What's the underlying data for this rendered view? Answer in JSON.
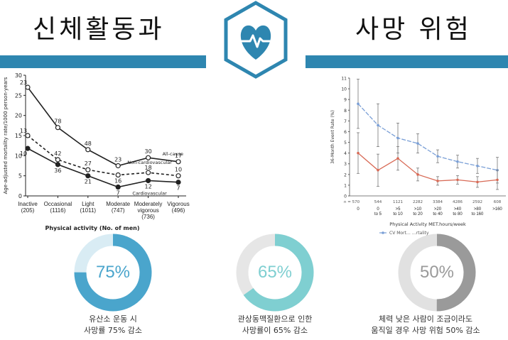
{
  "header": {
    "left_title": "신체활동과",
    "right_title": "사망 위험",
    "icon": "heart-pulse-icon",
    "band_color": "#2e86b0"
  },
  "chart_data": [
    {
      "type": "line",
      "xlabel": "Physical activity (No. of men)",
      "ylabel": "Age-adjusted mortality rate/1000 person-years",
      "ylim": [
        0,
        30
      ],
      "yticks": [
        0,
        5,
        10,
        15,
        20,
        25,
        30
      ],
      "categories": [
        "Inactive\n(205)",
        "Occasional\n(1116)",
        "Light\n(1011)",
        "Moderate\n(747)",
        "Moderately\nvigorous\n(736)",
        "Vigorous\n(496)"
      ],
      "series": [
        {
          "name": "All-cause",
          "style": "solid-open",
          "values": [
            27,
            17,
            11.5,
            7.5,
            9.5,
            8.5
          ],
          "labels": [
            "23",
            "78",
            "48",
            "23",
            "30",
            "17"
          ]
        },
        {
          "name": "Non-cardiovascular",
          "style": "dashed-open",
          "values": [
            15,
            9,
            6.5,
            5.2,
            5.8,
            5.0
          ],
          "labels": [
            "13",
            "42",
            "27",
            "16",
            "18",
            "10"
          ]
        },
        {
          "name": "Cardiovascular",
          "style": "solid-filled",
          "values": [
            11.8,
            7.8,
            5.0,
            2.2,
            3.8,
            3.4
          ],
          "labels": [
            "10",
            "36",
            "21",
            "7",
            "12",
            "7"
          ]
        }
      ]
    },
    {
      "type": "line",
      "ylabel": "36-Month Event Rate (%)",
      "xlabel": "Physical Activity MET.hours/week",
      "ylim": [
        0,
        11
      ],
      "yticks": [
        0,
        1,
        2,
        3,
        4,
        5,
        6,
        7,
        8,
        9,
        10,
        11
      ],
      "categories": [
        "0",
        "0\nto 5",
        ">5\nto 10",
        ">10\nto 20",
        ">20\nto 40",
        ">40\nto 80",
        ">80\nto 160",
        ">160"
      ],
      "n_label": "n = 570",
      "counts": [
        "",
        "544",
        "1121",
        "2282",
        "3384",
        "4286",
        "2592",
        "608"
      ],
      "legend": "CV Mort… …rtality",
      "series": [
        {
          "name": "CV Mortality",
          "color": "#7a9fd6",
          "values": [
            8.6,
            6.6,
            5.4,
            4.9,
            3.7,
            3.2,
            2.8,
            2.4
          ],
          "err": [
            2.3,
            2.0,
            1.4,
            0.9,
            0.6,
            0.6,
            0.7,
            1.2
          ]
        },
        {
          "name": "Mortality",
          "color": "#d86a56",
          "values": [
            4.0,
            2.4,
            3.5,
            2.0,
            1.4,
            1.5,
            1.3,
            1.5
          ],
          "err": [
            1.9,
            1.5,
            1.1,
            0.6,
            0.4,
            0.4,
            0.5,
            0.9
          ]
        }
      ]
    }
  ],
  "stats": [
    {
      "value": 75,
      "label": "75%",
      "color": "#4aa5cc",
      "track": "#d9ecf4",
      "text_color": "#4aa5cc",
      "caption1": "유산소 운동 시",
      "caption2": "사망률 75% 감소"
    },
    {
      "value": 65,
      "label": "65%",
      "color": "#7fcfd1",
      "track": "#e6e6e6",
      "text_color": "#7fcfd1",
      "caption1": "관상동맥질환으로 인한",
      "caption2": "사망률이 65% 감소"
    },
    {
      "value": 50,
      "label": "50%",
      "color": "#9a9a9a",
      "track": "#e1e1e1",
      "text_color": "#9a9a9a",
      "caption1": "체력 낮은 사람이 조금이라도",
      "caption2": "움직일 경우 사망 위험 50% 감소"
    }
  ]
}
